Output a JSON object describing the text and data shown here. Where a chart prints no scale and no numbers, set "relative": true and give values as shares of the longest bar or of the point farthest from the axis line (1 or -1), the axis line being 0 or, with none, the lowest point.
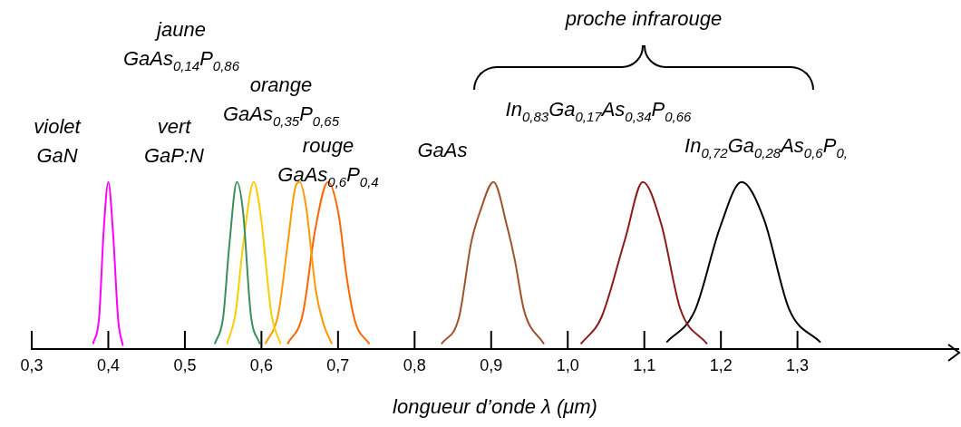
{
  "chart_data": {
    "type": "line",
    "relative": true,
    "xlabel": "longueur d’onde λ (μm)",
    "xlim": [
      0.3,
      1.51
    ],
    "xticks": [
      {
        "value": 0.3,
        "label": "0,3"
      },
      {
        "value": 0.4,
        "label": "0,4"
      },
      {
        "value": 0.5,
        "label": "0,5"
      },
      {
        "value": 0.6,
        "label": "0,6"
      },
      {
        "value": 0.7,
        "label": "0,7"
      },
      {
        "value": 0.8,
        "label": "0,8"
      },
      {
        "value": 0.9,
        "label": "0,9"
      },
      {
        "value": 1.0,
        "label": "1,0"
      },
      {
        "value": 1.1,
        "label": "1,1"
      },
      {
        "value": 1.2,
        "label": "1,2"
      },
      {
        "value": 1.3,
        "label": "1,3"
      }
    ],
    "grid": false,
    "legend": false,
    "marker": "none",
    "line_style": "solid",
    "series": [
      {
        "color": "#ff00ff",
        "x": [
          0.38,
          0.388,
          0.394,
          0.4,
          0.406,
          0.413,
          0.419
        ],
        "values": [
          0.03,
          0.19,
          0.71,
          1,
          0.71,
          0.17,
          0.02
        ]
      },
      {
        "color": "#3a8f5c",
        "x": [
          0.539,
          0.55,
          0.558,
          0.568,
          0.576,
          0.586,
          0.598
        ],
        "values": [
          0.03,
          0.19,
          0.62,
          1,
          0.82,
          0.21,
          0.03
        ]
      },
      {
        "color": "#ffcc00",
        "x": [
          0.555,
          0.566,
          0.576,
          0.59,
          0.599,
          0.613,
          0.625
        ],
        "values": [
          0.03,
          0.21,
          0.62,
          1,
          0.8,
          0.21,
          0.03
        ]
      },
      {
        "color": "#ff9900",
        "x": [
          0.605,
          0.622,
          0.634,
          0.645,
          0.65,
          0.658,
          0.671,
          0.681,
          0.692
        ],
        "values": [
          0.03,
          0.21,
          0.62,
          0.98,
          1,
          0.86,
          0.35,
          0.15,
          0.03
        ]
      },
      {
        "color": "#ff6600",
        "x": [
          0.634,
          0.654,
          0.67,
          0.687,
          0.701,
          0.711,
          0.722,
          0.741
        ],
        "values": [
          0.03,
          0.21,
          0.71,
          1,
          0.8,
          0.44,
          0.17,
          0.03
        ]
      },
      {
        "color": "#a0522d",
        "x": [
          0.835,
          0.858,
          0.874,
          0.886,
          0.903,
          0.921,
          0.931,
          0.943,
          0.969
        ],
        "values": [
          0.03,
          0.19,
          0.64,
          0.83,
          1,
          0.73,
          0.53,
          0.23,
          0.03
        ]
      },
      {
        "color": "#8b1a1a",
        "x": [
          1.017,
          1.044,
          1.075,
          1.098,
          1.122,
          1.147,
          1.182
        ],
        "values": [
          0.03,
          0.19,
          0.66,
          1,
          0.75,
          0.24,
          0.03
        ]
      },
      {
        "color": "#000000",
        "x": [
          1.129,
          1.166,
          1.199,
          1.227,
          1.256,
          1.289,
          1.33
        ],
        "values": [
          0.04,
          0.23,
          0.73,
          1,
          0.78,
          0.24,
          0.04
        ]
      }
    ],
    "annotations": [
      "violet\nGaN",
      "vert\nGaP:N",
      "jaune\nGaAs$_{0,14}$P$_{0,86}$",
      "orange\nGaAs$_{0,35}$P$_{0,65}$",
      "rouge\nGaAs$_{0,6}$P$_{0,4}$",
      "GaAs",
      "In$_{0,83}$Ga$_{0,17}$As$_{0,34}$P$_{0,66}$",
      "In$_{0,72}$Ga$_{0,28}$As$_{0,6}$P$_{0,}$",
      "proche infrarouge"
    ]
  }
}
